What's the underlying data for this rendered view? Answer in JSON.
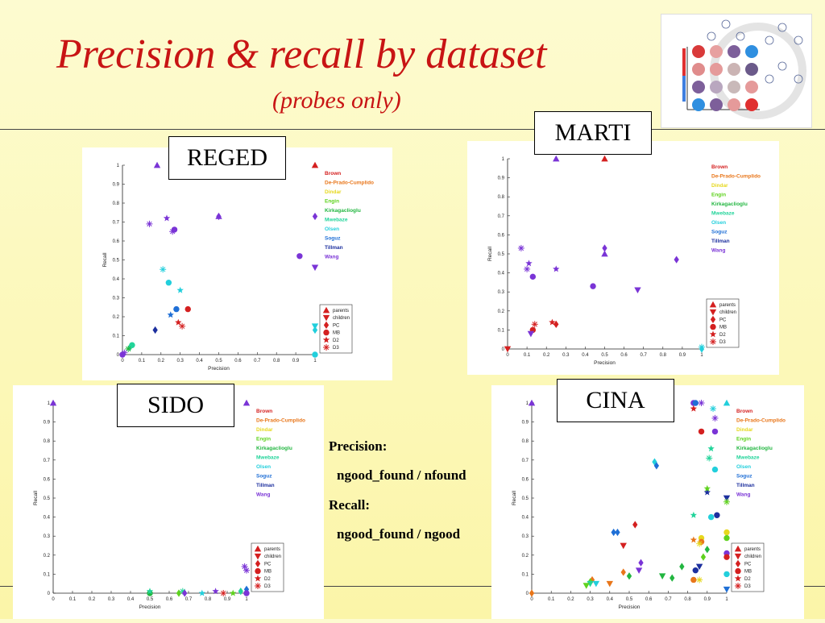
{
  "slide": {
    "title": "Precision & recall by dataset",
    "subtitle": "(probes only)",
    "definitions": {
      "precision_label": "Precision:",
      "precision_formula": "ngood_found / nfound",
      "recall_label": "Recall:",
      "recall_formula": "ngood_found / ngood"
    }
  },
  "legend_teams": [
    {
      "name": "Brown",
      "color": "#d42020"
    },
    {
      "name": "De-Prado-Cumplido",
      "color": "#e8761a"
    },
    {
      "name": "Dindar",
      "color": "#e6d81e"
    },
    {
      "name": "Engin",
      "color": "#5fd21e"
    },
    {
      "name": "Kirkagaclioglu",
      "color": "#22b640"
    },
    {
      "name": "Mwebaze",
      "color": "#22d49a"
    },
    {
      "name": "Olsen",
      "color": "#22cfdc"
    },
    {
      "name": "Soguz",
      "color": "#1f6fd6"
    },
    {
      "name": "Tillman",
      "color": "#1c2f9e"
    },
    {
      "name": "Wang",
      "color": "#7a34d6"
    }
  ],
  "legend_methods": [
    "parents",
    "children",
    "PC",
    "MB",
    "D2",
    "D3"
  ],
  "chart_data": [
    {
      "dataset": "REGED",
      "type": "scatter",
      "xlabel": "Precision",
      "ylabel": "Recall",
      "xlim": [
        0,
        1
      ],
      "ylim": [
        0,
        1
      ],
      "xticks": [
        "0",
        "0.1",
        "0.2",
        "0.3",
        "0.4",
        "0.5",
        "0.6",
        "0.7",
        "0.8",
        "0.9",
        "1"
      ],
      "yticks": [
        "0",
        "0.1",
        "0.2",
        "0.3",
        "0.4",
        "0.5",
        "0.6",
        "0.7",
        "0.8",
        "0.9",
        "1"
      ],
      "points": [
        {
          "team": "Wang",
          "method": "parents",
          "x": 0.18,
          "y": 1.0
        },
        {
          "team": "Brown",
          "method": "parents",
          "x": 1.0,
          "y": 1.0
        },
        {
          "team": "Wang",
          "method": "D2",
          "x": 0.23,
          "y": 0.72
        },
        {
          "team": "Wang",
          "method": "PC",
          "x": 0.5,
          "y": 0.73
        },
        {
          "team": "Wang",
          "method": "parents",
          "x": 0.5,
          "y": 0.73
        },
        {
          "team": "Wang",
          "method": "PC",
          "x": 1.0,
          "y": 0.73
        },
        {
          "team": "Wang",
          "method": "D3",
          "x": 0.14,
          "y": 0.69
        },
        {
          "team": "Wang",
          "method": "MB",
          "x": 0.27,
          "y": 0.66
        },
        {
          "team": "Wang",
          "method": "D3",
          "x": 0.26,
          "y": 0.65
        },
        {
          "team": "Wang",
          "method": "MB",
          "x": 0.92,
          "y": 0.52
        },
        {
          "team": "Wang",
          "method": "children",
          "x": 1.0,
          "y": 0.46
        },
        {
          "team": "Olsen",
          "method": "D3",
          "x": 0.21,
          "y": 0.45
        },
        {
          "team": "Olsen",
          "method": "MB",
          "x": 0.24,
          "y": 0.38
        },
        {
          "team": "Olsen",
          "method": "D2",
          "x": 0.3,
          "y": 0.34
        },
        {
          "team": "Soguz",
          "method": "MB",
          "x": 0.28,
          "y": 0.24
        },
        {
          "team": "Brown",
          "method": "MB",
          "x": 0.34,
          "y": 0.24
        },
        {
          "team": "Soguz",
          "method": "D2",
          "x": 0.25,
          "y": 0.21
        },
        {
          "team": "Brown",
          "method": "D2",
          "x": 0.29,
          "y": 0.17
        },
        {
          "team": "Brown",
          "method": "D3",
          "x": 0.31,
          "y": 0.15
        },
        {
          "team": "Tillman",
          "method": "PC",
          "x": 0.17,
          "y": 0.13
        },
        {
          "team": "Olsen",
          "method": "children",
          "x": 1.0,
          "y": 0.15
        },
        {
          "team": "Olsen",
          "method": "PC",
          "x": 1.0,
          "y": 0.13
        },
        {
          "team": "Mwebaze",
          "method": "MB",
          "x": 0.05,
          "y": 0.05
        },
        {
          "team": "Mwebaze",
          "method": "PC",
          "x": 0.04,
          "y": 0.04
        },
        {
          "team": "Kirkagaclioglu",
          "method": "D3",
          "x": 0.03,
          "y": 0.03
        },
        {
          "team": "Wang",
          "method": "MB",
          "x": 0.0,
          "y": 0.0
        },
        {
          "team": "Wang",
          "method": "D3",
          "x": 0.01,
          "y": 0.01
        },
        {
          "team": "Olsen",
          "method": "MB",
          "x": 1.0,
          "y": 0.0
        }
      ]
    },
    {
      "dataset": "MARTI",
      "type": "scatter",
      "xlabel": "Precision",
      "ylabel": "Recall",
      "xlim": [
        0,
        1
      ],
      "ylim": [
        0,
        1
      ],
      "xticks": [
        "0",
        "0.1",
        "0.2",
        "0.3",
        "0.4",
        "0.5",
        "0.6",
        "0.7",
        "0.8",
        "0.9",
        "1"
      ],
      "yticks": [
        "0",
        "0.1",
        "0.2",
        "0.3",
        "0.4",
        "0.5",
        "0.6",
        "0.7",
        "0.8",
        "0.9",
        "1"
      ],
      "points": [
        {
          "team": "Wang",
          "method": "parents",
          "x": 0.25,
          "y": 1.0
        },
        {
          "team": "Brown",
          "method": "parents",
          "x": 0.5,
          "y": 1.0
        },
        {
          "team": "Wang",
          "method": "D3",
          "x": 0.07,
          "y": 0.53
        },
        {
          "team": "Wang",
          "method": "PC",
          "x": 0.5,
          "y": 0.53
        },
        {
          "team": "Wang",
          "method": "parents",
          "x": 0.5,
          "y": 0.5
        },
        {
          "team": "Wang",
          "method": "PC",
          "x": 0.87,
          "y": 0.47
        },
        {
          "team": "Wang",
          "method": "D2",
          "x": 0.11,
          "y": 0.45
        },
        {
          "team": "Wang",
          "method": "D3",
          "x": 0.1,
          "y": 0.42
        },
        {
          "team": "Wang",
          "method": "D2",
          "x": 0.25,
          "y": 0.42
        },
        {
          "team": "Wang",
          "method": "MB",
          "x": 0.13,
          "y": 0.38
        },
        {
          "team": "Wang",
          "method": "MB",
          "x": 0.44,
          "y": 0.33
        },
        {
          "team": "Wang",
          "method": "children",
          "x": 0.67,
          "y": 0.31
        },
        {
          "team": "Brown",
          "method": "D2",
          "x": 0.23,
          "y": 0.14
        },
        {
          "team": "Brown",
          "method": "PC",
          "x": 0.25,
          "y": 0.13
        },
        {
          "team": "Brown",
          "method": "D3",
          "x": 0.14,
          "y": 0.13
        },
        {
          "team": "Brown",
          "method": "MB",
          "x": 0.13,
          "y": 0.1
        },
        {
          "team": "Wang",
          "method": "children",
          "x": 0.12,
          "y": 0.08
        },
        {
          "team": "Brown",
          "method": "children",
          "x": 0.0,
          "y": 0.0
        },
        {
          "team": "Olsen",
          "method": "PC",
          "x": 1.0,
          "y": 0.0
        },
        {
          "team": "Olsen",
          "method": "D3",
          "x": 1.0,
          "y": 0.01
        }
      ]
    },
    {
      "dataset": "SIDO",
      "type": "scatter",
      "xlabel": "Precision",
      "ylabel": "Recall",
      "xlim": [
        0,
        1
      ],
      "ylim": [
        0,
        1
      ],
      "xticks": [
        "0",
        "0.1",
        "0.2",
        "0.3",
        "0.4",
        "0.5",
        "0.6",
        "0.7",
        "0.8",
        "0.9",
        "1"
      ],
      "yticks": [
        "0",
        "0.1",
        "0.2",
        "0.3",
        "0.4",
        "0.5",
        "0.6",
        "0.7",
        "0.8",
        "0.9",
        "1"
      ],
      "points": [
        {
          "team": "Wang",
          "method": "parents",
          "x": 0.0,
          "y": 1.0
        },
        {
          "team": "Wang",
          "method": "parents",
          "x": 1.0,
          "y": 1.0
        },
        {
          "team": "Wang",
          "method": "D3",
          "x": 0.99,
          "y": 0.14
        },
        {
          "team": "Wang",
          "method": "D3",
          "x": 1.0,
          "y": 0.12
        },
        {
          "team": "Kirkagaclioglu",
          "method": "MB",
          "x": 0.5,
          "y": 0.0
        },
        {
          "team": "Mwebaze",
          "method": "D2",
          "x": 0.5,
          "y": 0.01
        },
        {
          "team": "Engin",
          "method": "PC",
          "x": 0.65,
          "y": 0.0
        },
        {
          "team": "Mwebaze",
          "method": "D3",
          "x": 0.67,
          "y": 0.01
        },
        {
          "team": "Wang",
          "method": "PC",
          "x": 0.68,
          "y": 0.0
        },
        {
          "team": "Olsen",
          "method": "D2",
          "x": 0.77,
          "y": 0.0
        },
        {
          "team": "Wang",
          "method": "D2",
          "x": 0.84,
          "y": 0.01
        },
        {
          "team": "Brown",
          "method": "D3",
          "x": 0.88,
          "y": 0.0
        },
        {
          "team": "Engin",
          "method": "D2",
          "x": 0.93,
          "y": 0.0
        },
        {
          "team": "Mwebaze",
          "method": "PC",
          "x": 0.97,
          "y": 0.01
        },
        {
          "team": "Soguz",
          "method": "PC",
          "x": 1.0,
          "y": 0.02
        },
        {
          "team": "Wang",
          "method": "MB",
          "x": 1.0,
          "y": 0.0
        }
      ]
    },
    {
      "dataset": "CINA",
      "type": "scatter",
      "xlabel": "Precision",
      "ylabel": "Recall",
      "xlim": [
        0,
        1
      ],
      "ylim": [
        0,
        1
      ],
      "xticks": [
        "0",
        "0.1",
        "0.2",
        "0.3",
        "0.4",
        "0.5",
        "0.6",
        "0.7",
        "0.8",
        "0.9",
        "1"
      ],
      "yticks": [
        "0",
        "0.1",
        "0.2",
        "0.3",
        "0.4",
        "0.5",
        "0.6",
        "0.7",
        "0.8",
        "0.9",
        "1"
      ],
      "points": [
        {
          "team": "Wang",
          "method": "parents",
          "x": 0.0,
          "y": 1.0
        },
        {
          "team": "Olsen",
          "method": "parents",
          "x": 1.0,
          "y": 1.0
        },
        {
          "team": "Wang",
          "method": "MB",
          "x": 0.83,
          "y": 1.0
        },
        {
          "team": "Soguz",
          "method": "MB",
          "x": 0.84,
          "y": 1.0
        },
        {
          "team": "Wang",
          "method": "D3",
          "x": 0.87,
          "y": 1.0
        },
        {
          "team": "Brown",
          "method": "D2",
          "x": 0.83,
          "y": 0.97
        },
        {
          "team": "Olsen",
          "method": "D3",
          "x": 0.93,
          "y": 0.97
        },
        {
          "team": "Wang",
          "method": "D3",
          "x": 0.94,
          "y": 0.92
        },
        {
          "team": "Brown",
          "method": "MB",
          "x": 0.87,
          "y": 0.85
        },
        {
          "team": "Wang",
          "method": "MB",
          "x": 0.94,
          "y": 0.85
        },
        {
          "team": "Mwebaze",
          "method": "D2",
          "x": 0.92,
          "y": 0.76
        },
        {
          "team": "Mwebaze",
          "method": "D3",
          "x": 0.91,
          "y": 0.71
        },
        {
          "team": "Olsen",
          "method": "PC",
          "x": 0.63,
          "y": 0.69
        },
        {
          "team": "Soguz",
          "method": "PC",
          "x": 0.64,
          "y": 0.67
        },
        {
          "team": "Olsen",
          "method": "MB",
          "x": 0.94,
          "y": 0.65
        },
        {
          "team": "Tillman",
          "method": "D2",
          "x": 0.9,
          "y": 0.53
        },
        {
          "team": "Engin",
          "method": "D2",
          "x": 0.9,
          "y": 0.55
        },
        {
          "team": "Tillman",
          "method": "children",
          "x": 1.0,
          "y": 0.5
        },
        {
          "team": "Engin",
          "method": "D3",
          "x": 1.0,
          "y": 0.48
        },
        {
          "team": "Mwebaze",
          "method": "D2",
          "x": 0.83,
          "y": 0.41
        },
        {
          "team": "Olsen",
          "method": "MB",
          "x": 0.92,
          "y": 0.4
        },
        {
          "team": "Tillman",
          "method": "MB",
          "x": 0.95,
          "y": 0.41
        },
        {
          "team": "Brown",
          "method": "PC",
          "x": 0.53,
          "y": 0.36
        },
        {
          "team": "Soguz",
          "method": "PC",
          "x": 0.42,
          "y": 0.32
        },
        {
          "team": "Soguz",
          "method": "PC",
          "x": 0.44,
          "y": 0.32
        },
        {
          "team": "Dindar",
          "method": "MB",
          "x": 1.0,
          "y": 0.32
        },
        {
          "team": "Engin",
          "method": "MB",
          "x": 1.0,
          "y": 0.29
        },
        {
          "team": "De-Prado-Cumplido",
          "method": "D2",
          "x": 0.83,
          "y": 0.28
        },
        {
          "team": "Dindar",
          "method": "MB",
          "x": 0.87,
          "y": 0.29
        },
        {
          "team": "De-Prado-Cumplido",
          "method": "MB",
          "x": 0.87,
          "y": 0.27
        },
        {
          "team": "Dindar",
          "method": "D3",
          "x": 0.86,
          "y": 0.26
        },
        {
          "team": "Brown",
          "method": "children",
          "x": 0.47,
          "y": 0.25
        },
        {
          "team": "Kirkagaclioglu",
          "method": "PC",
          "x": 0.9,
          "y": 0.23
        },
        {
          "team": "Wang",
          "method": "MB",
          "x": 1.0,
          "y": 0.21
        },
        {
          "team": "Brown",
          "method": "MB",
          "x": 1.0,
          "y": 0.19
        },
        {
          "team": "Engin",
          "method": "PC",
          "x": 0.88,
          "y": 0.19
        },
        {
          "team": "Wang",
          "method": "PC",
          "x": 0.56,
          "y": 0.16
        },
        {
          "team": "Kirkagaclioglu",
          "method": "PC",
          "x": 0.77,
          "y": 0.14
        },
        {
          "team": "Tillman",
          "method": "children",
          "x": 0.86,
          "y": 0.14
        },
        {
          "team": "Tillman",
          "method": "MB",
          "x": 0.84,
          "y": 0.12
        },
        {
          "team": "Wang",
          "method": "children",
          "x": 0.55,
          "y": 0.12
        },
        {
          "team": "De-Prado-Cumplido",
          "method": "PC",
          "x": 0.47,
          "y": 0.11
        },
        {
          "team": "Kirkagaclioglu",
          "method": "PC",
          "x": 0.5,
          "y": 0.09
        },
        {
          "team": "Kirkagaclioglu",
          "method": "children",
          "x": 0.67,
          "y": 0.09
        },
        {
          "team": "Olsen",
          "method": "MB",
          "x": 1.0,
          "y": 0.1
        },
        {
          "team": "Kirkagaclioglu",
          "method": "PC",
          "x": 0.72,
          "y": 0.08
        },
        {
          "team": "De-Prado-Cumplido",
          "method": "MB",
          "x": 0.83,
          "y": 0.07
        },
        {
          "team": "Dindar",
          "method": "D3",
          "x": 0.86,
          "y": 0.07
        },
        {
          "team": "De-Prado-Cumplido",
          "method": "PC",
          "x": 0.31,
          "y": 0.07
        },
        {
          "team": "Engin",
          "method": "PC",
          "x": 0.3,
          "y": 0.06
        },
        {
          "team": "Mwebaze",
          "method": "children",
          "x": 0.3,
          "y": 0.05
        },
        {
          "team": "Engin",
          "method": "children",
          "x": 0.28,
          "y": 0.04
        },
        {
          "team": "Olsen",
          "method": "children",
          "x": 0.33,
          "y": 0.05
        },
        {
          "team": "De-Prado-Cumplido",
          "method": "children",
          "x": 0.4,
          "y": 0.05
        },
        {
          "team": "De-Prado-Cumplido",
          "method": "PC",
          "x": 0.0,
          "y": 0.0
        },
        {
          "team": "Soguz",
          "method": "children",
          "x": 1.0,
          "y": 0.02
        }
      ]
    }
  ]
}
